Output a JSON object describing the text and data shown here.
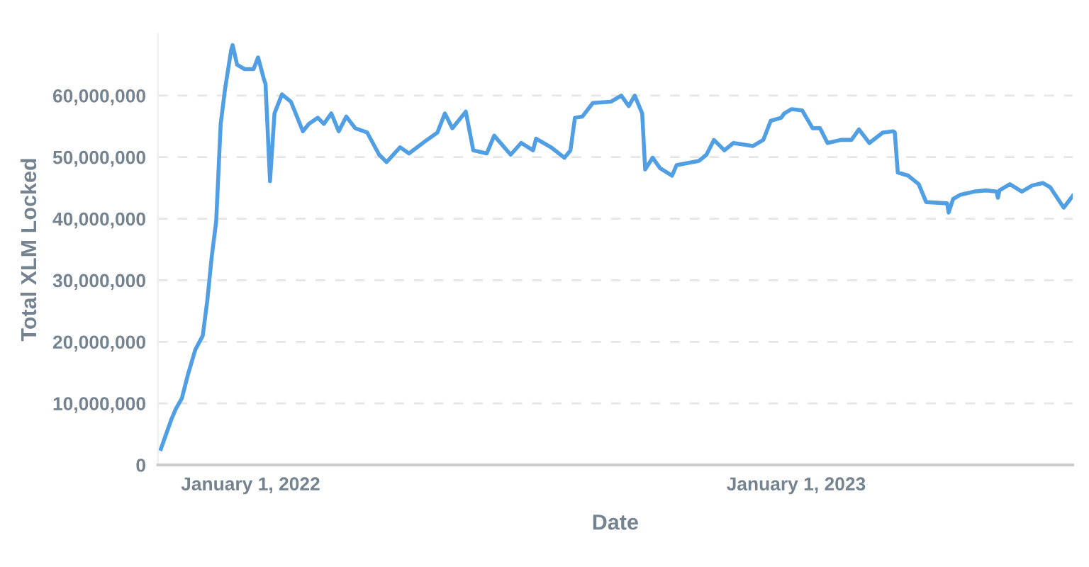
{
  "chart_data": {
    "type": "line",
    "xlabel": "Date",
    "ylabel": "Total XLM Locked",
    "x": [
      "2021-11-02",
      "2021-11-09",
      "2021-11-12",
      "2021-11-16",
      "2021-11-20",
      "2021-11-25",
      "2021-11-30",
      "2021-12-03",
      "2021-12-06",
      "2021-12-09",
      "2021-12-12",
      "2021-12-15",
      "2021-12-19",
      "2021-12-20",
      "2021-12-23",
      "2021-12-28",
      "2022-01-03",
      "2022-01-06",
      "2022-01-10",
      "2022-01-11",
      "2022-01-14",
      "2022-01-17",
      "2022-01-22",
      "2022-01-28",
      "2022-02-05",
      "2022-02-09",
      "2022-02-15",
      "2022-02-19",
      "2022-02-24",
      "2022-03-01",
      "2022-03-06",
      "2022-03-12",
      "2022-03-20",
      "2022-03-28",
      "2022-04-02",
      "2022-04-11",
      "2022-04-17",
      "2022-04-29",
      "2022-05-06",
      "2022-05-11",
      "2022-05-16",
      "2022-05-25",
      "2022-05-30",
      "2022-06-08",
      "2022-06-13",
      "2022-06-24",
      "2022-07-01",
      "2022-07-09",
      "2022-07-11",
      "2022-07-21",
      "2022-07-30",
      "2022-08-03",
      "2022-08-06",
      "2022-08-11",
      "2022-08-18",
      "2022-08-30",
      "2022-09-06",
      "2022-09-11",
      "2022-09-15",
      "2022-09-20",
      "2022-09-22",
      "2022-09-27",
      "2022-10-02",
      "2022-10-10",
      "2022-10-13",
      "2022-10-28",
      "2022-11-02",
      "2022-11-07",
      "2022-11-14",
      "2022-11-20",
      "2022-12-03",
      "2022-12-10",
      "2022-12-15",
      "2022-12-22",
      "2022-12-24",
      "2022-12-29",
      "2023-01-05",
      "2023-01-12",
      "2023-01-17",
      "2023-01-22",
      "2023-01-31",
      "2023-02-07",
      "2023-02-12",
      "2023-02-19",
      "2023-02-28",
      "2023-03-07",
      "2023-03-08",
      "2023-03-10",
      "2023-03-17",
      "2023-03-24",
      "2023-03-29",
      "2023-04-12",
      "2023-04-13",
      "2023-04-16",
      "2023-04-21",
      "2023-04-30",
      "2023-05-08",
      "2023-05-15",
      "2023-05-16",
      "2023-05-17",
      "2023-05-24",
      "2023-06-01",
      "2023-06-08",
      "2023-06-15",
      "2023-06-20",
      "2023-06-29",
      "2023-07-05"
    ],
    "series": [
      {
        "color": "#509ee3",
        "values": [
          2600000,
          7400000,
          9100000,
          10800000,
          14600000,
          18700000,
          21000000,
          26600000,
          33800000,
          39600000,
          55400000,
          61200000,
          67400000,
          68200000,
          65000000,
          64300000,
          64300000,
          66200000,
          62600000,
          61900000,
          46100000,
          57100000,
          60200000,
          59000000,
          54200000,
          55400000,
          56400000,
          55400000,
          57100000,
          54200000,
          56600000,
          54700000,
          54000000,
          50400000,
          49200000,
          51600000,
          50600000,
          52800000,
          54000000,
          57100000,
          54700000,
          57400000,
          51100000,
          50600000,
          53500000,
          50400000,
          52300000,
          51100000,
          53000000,
          51600000,
          49900000,
          51100000,
          56400000,
          56600000,
          58800000,
          59000000,
          60000000,
          58300000,
          60000000,
          57100000,
          48000000,
          49900000,
          48200000,
          47000000,
          48700000,
          49400000,
          50400000,
          52800000,
          51100000,
          52300000,
          51800000,
          52800000,
          55900000,
          56400000,
          57100000,
          57800000,
          57600000,
          54700000,
          54700000,
          52300000,
          52800000,
          52800000,
          54500000,
          52300000,
          54000000,
          54200000,
          54000000,
          47500000,
          47000000,
          45600000,
          42700000,
          42500000,
          41000000,
          43200000,
          43900000,
          44400000,
          44600000,
          44400000,
          43400000,
          44600000,
          45600000,
          44400000,
          45400000,
          45800000,
          45100000,
          41800000,
          43700000
        ]
      }
    ],
    "xlim": [
      "2021-10-31",
      "2023-07-05"
    ],
    "xticks": [
      {
        "value": "2022-01-01",
        "label": "January 1, 2022"
      },
      {
        "value": "2023-01-01",
        "label": "January 1, 2023"
      }
    ],
    "ylim": [
      0,
      70000000
    ],
    "yticks": [
      0,
      {
        "value": 10000000,
        "label": "10,000,000"
      },
      {
        "value": 20000000,
        "label": "20,000,000"
      },
      {
        "value": 30000000,
        "label": "30,000,000"
      },
      {
        "value": 40000000,
        "label": "40,000,000"
      },
      {
        "value": 50000000,
        "label": "50,000,000"
      },
      {
        "value": 60000000,
        "label": "60,000,000"
      }
    ],
    "grid": "y",
    "line_style": "solid",
    "marker": "none"
  }
}
